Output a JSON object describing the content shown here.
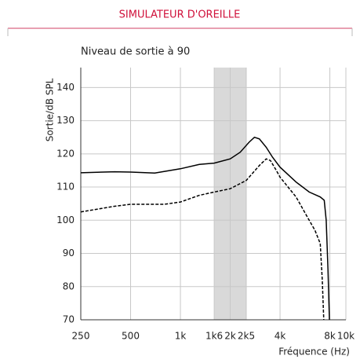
{
  "header": {
    "title": "SIMULATEUR D'OREILLE"
  },
  "chart_data": {
    "type": "line",
    "title": "Niveau de sortie à 90",
    "ylabel": "Sortie/dB SPL",
    "xlabel": "Fréquence (Hz)",
    "xscale": "log",
    "xlim": [
      250,
      10000
    ],
    "ylim": [
      70,
      146
    ],
    "xticks": [
      250,
      {
        "value": 500,
        "label": "500"
      },
      {
        "value": 1000,
        "label": "1k"
      },
      {
        "value": 1600,
        "label": "1k6"
      },
      {
        "value": 2000,
        "label": "2k"
      },
      {
        "value": 2500,
        "label": "2k5"
      },
      {
        "value": 4000,
        "label": "4k"
      },
      {
        "value": 8000,
        "label": "8k"
      },
      {
        "value": 10000,
        "label": "10k"
      }
    ],
    "yticks": [
      70,
      80,
      90,
      100,
      110,
      120,
      130,
      140
    ],
    "grid": true,
    "shaded_band": {
      "range": [
        1600,
        2500
      ],
      "color": "#d9d9d9"
    },
    "series": [
      {
        "color": "#000000",
        "dash": false,
        "x": [
          250,
          400,
          500,
          700,
          1000,
          1300,
          1600,
          2000,
          2300,
          2600,
          2800,
          3000,
          3300,
          3600,
          4000,
          5000,
          6000,
          7000,
          7400,
          7600,
          7800,
          7950
        ],
        "values": [
          114.3,
          114.6,
          114.5,
          114.2,
          115.5,
          116.8,
          117.2,
          118.5,
          120.5,
          123.5,
          125,
          124.5,
          122,
          119,
          116,
          111.5,
          108.5,
          107,
          106,
          100,
          85,
          70
        ]
      },
      {
        "color": "#000000",
        "dash": true,
        "x": [
          250,
          400,
          500,
          800,
          1000,
          1300,
          1600,
          2000,
          2500,
          3000,
          3300,
          3500,
          3800,
          4000,
          5000,
          6000,
          6500,
          7000,
          7200,
          7350
        ],
        "values": [
          102.5,
          104.2,
          104.8,
          104.8,
          105.5,
          107.5,
          108.5,
          109.5,
          112,
          116.5,
          118.5,
          118,
          115,
          113,
          107,
          100,
          97,
          93,
          82,
          70
        ]
      }
    ]
  }
}
